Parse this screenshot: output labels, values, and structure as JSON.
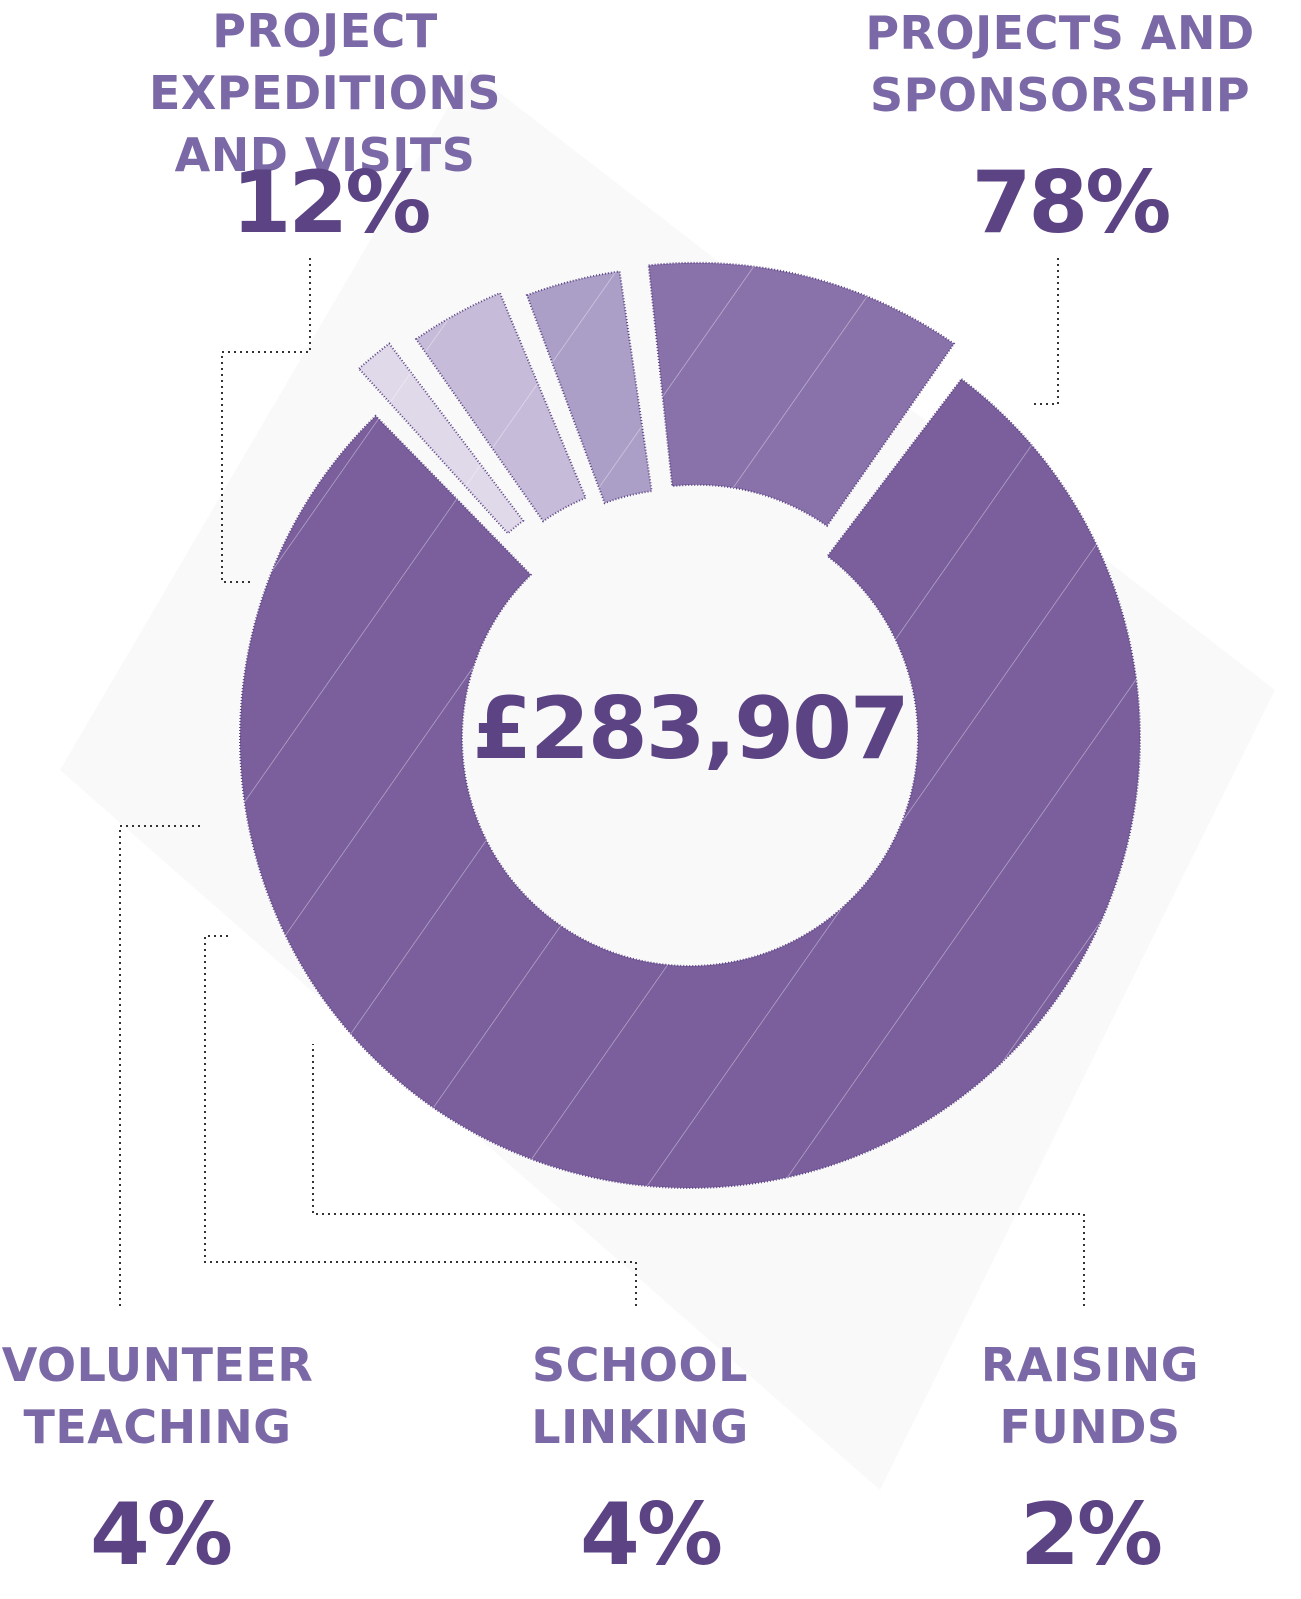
{
  "chart_data": {
    "type": "pie",
    "variant": "donut",
    "center_label": "£283,907",
    "slices": [
      {
        "label_line1": "PROJECTS AND",
        "label_line2": "SPONSORSHIP",
        "value": 78,
        "value_label": "78%",
        "color": "#7a5f9c",
        "exploded": false
      },
      {
        "label_line1": "PROJECT EXPEDITIONS",
        "label_line2": "AND VISITS",
        "value": 12,
        "value_label": "12%",
        "color": "#8972aa",
        "exploded": true
      },
      {
        "label_line1": "VOLUNTEER",
        "label_line2": "TEACHING",
        "value": 4,
        "value_label": "4%",
        "color": "#ab9fc7",
        "exploded": true
      },
      {
        "label_line1": "SCHOOL",
        "label_line2": "LINKING",
        "value": 4,
        "value_label": "4%",
        "color": "#c6bcd9",
        "exploded": true
      },
      {
        "label_line1": "RAISING",
        "label_line2": "FUNDS",
        "value": 2,
        "value_label": "2%",
        "color": "#e0d9ea",
        "exploded": true
      }
    ]
  }
}
